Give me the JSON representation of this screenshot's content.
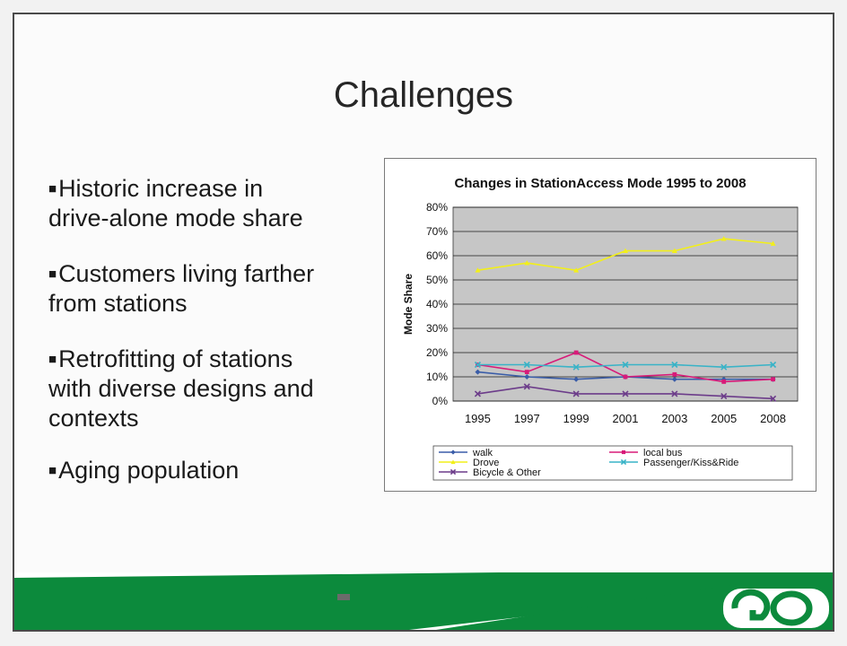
{
  "slide": {
    "title": "Challenges",
    "bullets": [
      {
        "line1": "Historic increase in",
        "line2": "drive-alone mode share"
      },
      {
        "line1": "Customers living farther",
        "line2": "from stations"
      },
      {
        "line1": "Retrofitting of stations",
        "line2": "with diverse designs and",
        "line3": "contexts"
      },
      {
        "line1": "Aging population"
      }
    ]
  },
  "colors": {
    "walk": "#3a5da8",
    "local_bus": "#d81b79",
    "drove": "#f2ef1a",
    "passenger": "#39b3c7",
    "bicycle": "#6c3c8a",
    "plot_bg": "#c6c6c6",
    "footer_green": "#0c8a3c"
  },
  "icons": [
    "go-transit-logo"
  ],
  "chart_data": {
    "type": "line",
    "title": "Changes in StationAccess Mode 1995 to 2008",
    "xlabel": "",
    "ylabel": "Mode Share",
    "categories": [
      "1995",
      "1997",
      "1999",
      "2001",
      "2003",
      "2005",
      "2008"
    ],
    "y_ticks": [
      "0%",
      "10%",
      "20%",
      "30%",
      "40%",
      "50%",
      "60%",
      "70%",
      "80%"
    ],
    "ylim": [
      0,
      80
    ],
    "grid": true,
    "legend_position": "bottom",
    "series": [
      {
        "name": "walk",
        "values": [
          12,
          10,
          9,
          10,
          9,
          9,
          9
        ]
      },
      {
        "name": "local bus",
        "values": [
          15,
          12,
          20,
          10,
          11,
          8,
          9
        ]
      },
      {
        "name": "Drove",
        "values": [
          54,
          57,
          54,
          62,
          62,
          67,
          65
        ]
      },
      {
        "name": "Passenger/Kiss&Ride",
        "values": [
          15,
          15,
          14,
          15,
          15,
          14,
          15
        ]
      },
      {
        "name": "Bicycle & Other",
        "values": [
          3,
          6,
          3,
          3,
          3,
          2,
          1
        ]
      }
    ]
  }
}
